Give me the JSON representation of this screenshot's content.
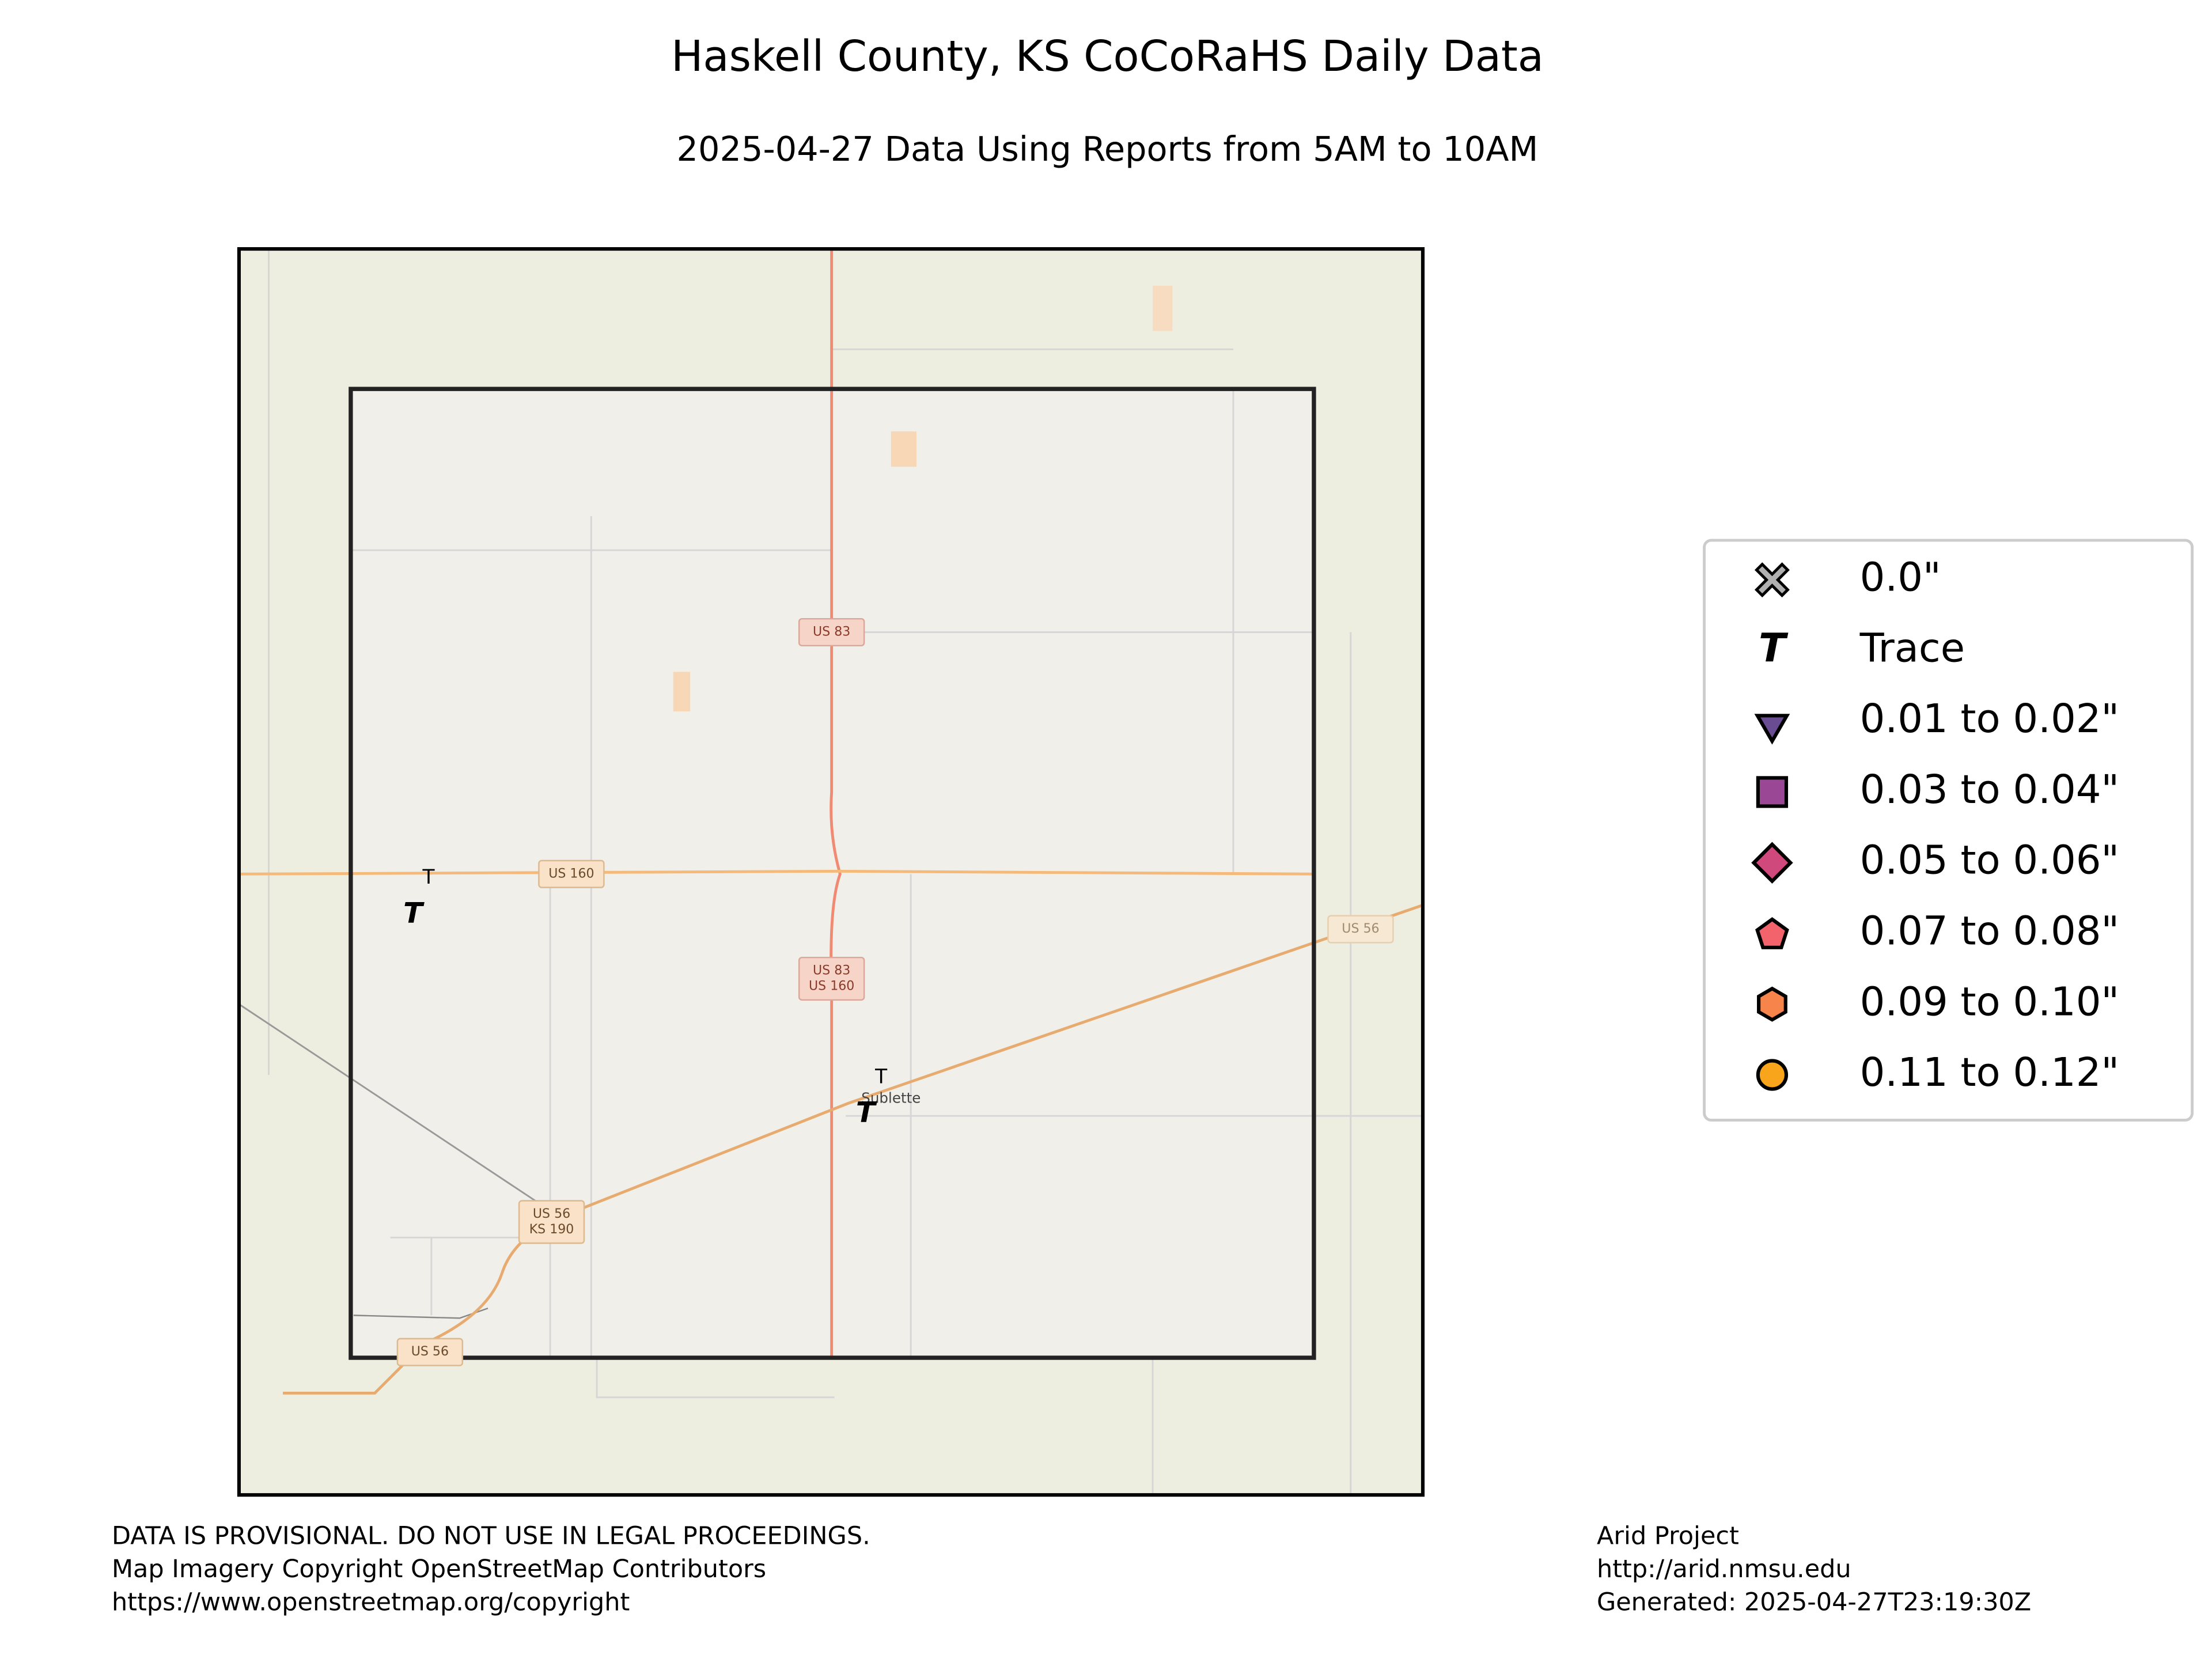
{
  "title": "Haskell County, KS CoCoRaHS Daily Data",
  "subtitle": "2025-04-27 Data Using Reports from 5AM to 10AM",
  "map": {
    "labels": [
      {
        "lines": [
          "US 83"
        ],
        "kind": "us-red"
      },
      {
        "lines": [
          "US 160"
        ],
        "kind": "us-orange"
      },
      {
        "lines": [
          "US 83",
          "US 160"
        ],
        "kind": "us-red"
      },
      {
        "lines": [
          "US 56"
        ],
        "kind": "us-faint"
      },
      {
        "lines": [
          "US 56",
          "KS 190"
        ],
        "kind": "us-orange"
      },
      {
        "lines": [
          "US 56"
        ],
        "kind": "us-orange"
      }
    ],
    "places": [
      "Sublette"
    ],
    "stations": [
      {
        "value": "T"
      },
      {
        "value": "T"
      }
    ]
  },
  "legend": [
    {
      "marker": "X",
      "label": "0.0\"",
      "color": "#b0b0b0"
    },
    {
      "marker": "T",
      "label": "Trace",
      "color": "#000000"
    },
    {
      "marker": "v",
      "label": "0.01 to 0.02\"",
      "color": "#6a4c93"
    },
    {
      "marker": "s",
      "label": "0.03 to 0.04\"",
      "color": "#9a4795"
    },
    {
      "marker": "D",
      "label": "0.05 to 0.06\"",
      "color": "#d0497d"
    },
    {
      "marker": "p",
      "label": "0.07 to 0.08\"",
      "color": "#f3636b"
    },
    {
      "marker": "h",
      "label": "0.09 to 0.10\"",
      "color": "#f7844a"
    },
    {
      "marker": "o",
      "label": "0.11 to 0.12\"",
      "color": "#f9a51c"
    }
  ],
  "footer": {
    "left": [
      "DATA IS PROVISIONAL. DO NOT USE IN LEGAL PROCEEDINGS.",
      "Map Imagery Copyright OpenStreetMap Contributors",
      "https://www.openstreetmap.org/copyright"
    ],
    "right": [
      "Arid Project",
      "http://arid.nmsu.edu",
      "Generated: 2025-04-27T23:19:30Z"
    ]
  }
}
